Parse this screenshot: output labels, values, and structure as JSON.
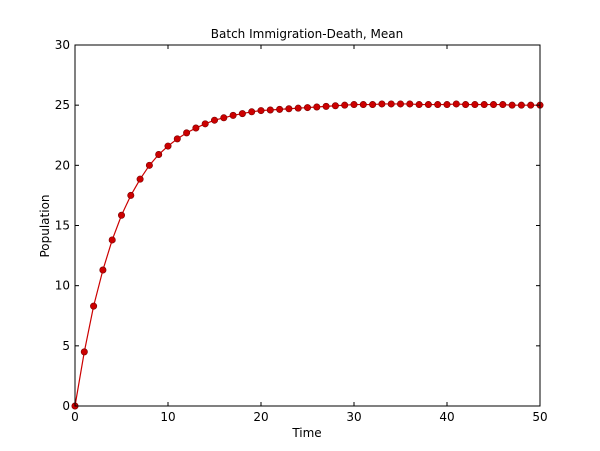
{
  "chart_data": {
    "type": "line",
    "title": "Batch Immigration-Death, Mean",
    "xlabel": "Time",
    "ylabel": "Population",
    "xlim": [
      0,
      50
    ],
    "ylim": [
      0,
      30
    ],
    "xticks": [
      "0",
      "10",
      "20",
      "30",
      "40",
      "50"
    ],
    "yticks": [
      "0",
      "5",
      "10",
      "15",
      "20",
      "25",
      "30"
    ],
    "grid": false,
    "series": [
      {
        "color": "#cc0000",
        "marker": "circle",
        "x": [
          0,
          1,
          2,
          3,
          4,
          5,
          6,
          7,
          8,
          9,
          10,
          11,
          12,
          13,
          14,
          15,
          16,
          17,
          18,
          19,
          20,
          21,
          22,
          23,
          24,
          25,
          26,
          27,
          28,
          29,
          30,
          31,
          32,
          33,
          34,
          35,
          36,
          37,
          38,
          39,
          40,
          41,
          42,
          43,
          44,
          45,
          46,
          47,
          48,
          49,
          50
        ],
        "y": [
          0,
          4.5,
          8.3,
          11.3,
          13.8,
          15.85,
          17.5,
          18.85,
          20.0,
          20.9,
          21.6,
          22.2,
          22.7,
          23.1,
          23.45,
          23.75,
          23.95,
          24.15,
          24.3,
          24.45,
          24.55,
          24.6,
          24.65,
          24.7,
          24.75,
          24.8,
          24.85,
          24.9,
          24.95,
          25.0,
          25.05,
          25.05,
          25.05,
          25.1,
          25.1,
          25.1,
          25.1,
          25.05,
          25.05,
          25.05,
          25.05,
          25.1,
          25.05,
          25.05,
          25.05,
          25.05,
          25.05,
          25.0,
          25.0,
          25.0,
          25.0
        ]
      }
    ]
  }
}
